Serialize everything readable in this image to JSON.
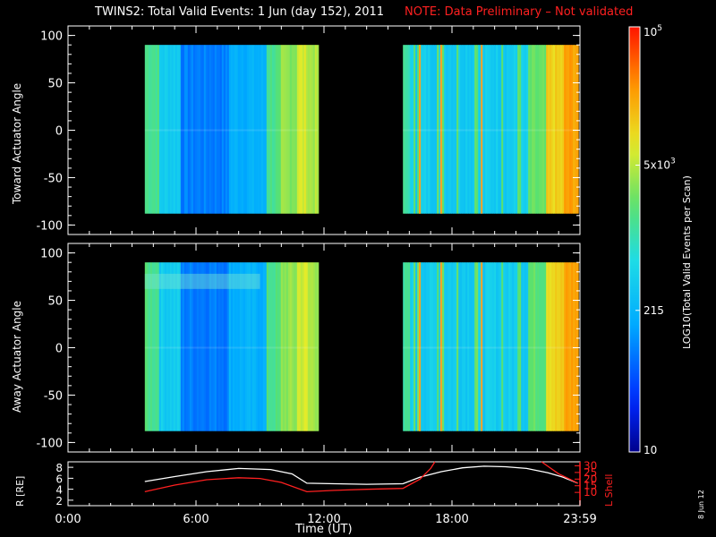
{
  "header": {
    "title": "TWINS2: Total Valid Events:  1 Jun (day 152), 2011",
    "note": "NOTE: Data Preliminary – Not validated"
  },
  "stamp": "8 Jun 12",
  "colors": {
    "background": "#000000",
    "axes": "#ffffff",
    "note": "#ff2020",
    "lshell": "#ff2020",
    "radius": "#ffffff"
  },
  "chart_data": [
    {
      "type": "heatmap",
      "panel": "toward",
      "ylabel": "Toward Actuator Angle",
      "ylim": [
        -110,
        110
      ],
      "yticks": [
        100,
        50,
        0,
        -50,
        -100
      ],
      "x_hours": [
        0,
        24
      ],
      "data_blocks": [
        {
          "start": 3.6,
          "end": 11.7,
          "angle_range": [
            -88,
            90
          ]
        },
        {
          "start": 15.7,
          "end": 23.9,
          "angle_range": [
            -88,
            90
          ]
        }
      ]
    },
    {
      "type": "heatmap",
      "panel": "away",
      "ylabel": "Away Actuator Angle",
      "ylim": [
        -110,
        110
      ],
      "yticks": [
        100,
        50,
        0,
        -50,
        -100
      ],
      "x_hours": [
        0,
        24
      ],
      "data_blocks": [
        {
          "start": 3.6,
          "end": 11.7,
          "angle_range": [
            -88,
            90
          ]
        },
        {
          "start": 15.7,
          "end": 23.9,
          "angle_range": [
            -88,
            90
          ]
        }
      ]
    },
    {
      "type": "line",
      "panel": "orbit",
      "ylabel": "R [RE]",
      "y2label": "L Shell",
      "ylim": [
        1,
        9
      ],
      "yticks": [
        2,
        4,
        6,
        8
      ],
      "y2lim": [
        0,
        33
      ],
      "y2ticks": [
        10,
        15,
        20,
        25,
        30
      ],
      "xticks": [
        "0:00",
        "6:00",
        "12:00",
        "18:00",
        "23:59"
      ],
      "xlabel": "Time (UT)",
      "series": [
        {
          "name": "R",
          "color": "#ffffff",
          "x": [
            3.6,
            5.0,
            6.5,
            8.0,
            9.5,
            10.5,
            11.2,
            12.5,
            14.0,
            15.7,
            16.5,
            17.5,
            18.5,
            19.5,
            20.5,
            21.5,
            22.5,
            23.2,
            23.9
          ],
          "y": [
            5.4,
            6.3,
            7.2,
            7.8,
            7.6,
            6.8,
            5.1,
            5.0,
            4.9,
            5.0,
            6.2,
            7.2,
            7.9,
            8.2,
            8.1,
            7.8,
            7.0,
            6.2,
            5.1
          ]
        },
        {
          "name": "L Shell",
          "color": "#ff2020",
          "x": [
            3.6,
            5.0,
            6.5,
            8.0,
            9.0,
            10.0,
            11.2,
            12.5,
            14.0,
            15.7,
            16.5,
            17.0,
            17.2
          ],
          "y": [
            10.5,
            15.5,
            19.5,
            21.0,
            20.5,
            17.5,
            10.5,
            11.5,
            12.3,
            13.0,
            20.0,
            28.0,
            33.0
          ]
        },
        {
          "name": "L Shell 2",
          "color": "#ff2020",
          "x": [
            22.2,
            23.0,
            23.9
          ],
          "y": [
            33.0,
            24.0,
            17.0
          ]
        }
      ]
    }
  ],
  "colorbar": {
    "label": "LOG10(Total Valid Events per Scan)",
    "ticks": [
      {
        "label": "10",
        "value": 10
      },
      {
        "label": "215",
        "value": 215
      },
      {
        "label": "5x10^3",
        "value": 5000
      },
      {
        "label": "10^5",
        "value": 100000
      }
    ],
    "range": [
      10,
      100000
    ]
  }
}
